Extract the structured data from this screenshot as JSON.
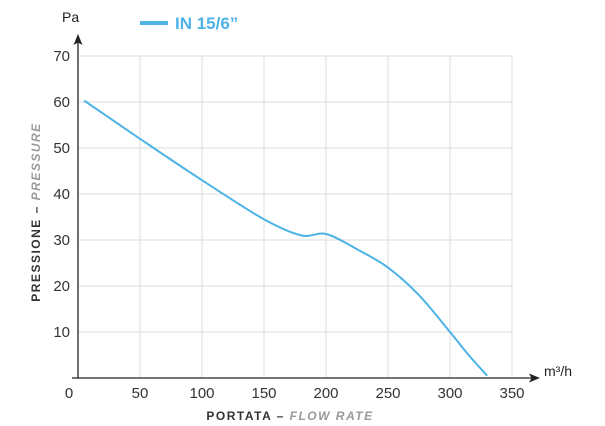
{
  "chart_data": {
    "type": "line",
    "x_unit": "m³/h",
    "y_unit": "Pa",
    "xlabel": {
      "main": "PORTATA",
      "dash": " – ",
      "sub": "FLOW RATE"
    },
    "ylabel": {
      "main": "PRESSIONE",
      "dash": " – ",
      "sub": "PRESSURE"
    },
    "xlim": [
      0,
      350
    ],
    "ylim": [
      0,
      70
    ],
    "x_ticks": [
      0,
      50,
      100,
      150,
      200,
      250,
      300,
      350
    ],
    "y_ticks": [
      10,
      20,
      30,
      40,
      50,
      60,
      70
    ],
    "grid": true,
    "legend_position": "top",
    "series": [
      {
        "name": "IN 15/6”",
        "color": "#4db3e6",
        "x": [
          5,
          50,
          100,
          150,
          180,
          200,
          225,
          250,
          275,
          300,
          315,
          330
        ],
        "y": [
          60.3,
          52,
          43,
          34.5,
          31,
          31.3,
          28,
          24,
          18,
          10,
          5,
          0.5
        ]
      }
    ],
    "colors": {
      "axis": "#222222",
      "grid": "#dddddd",
      "title_main": "#333333",
      "title_sub": "#999999"
    }
  }
}
